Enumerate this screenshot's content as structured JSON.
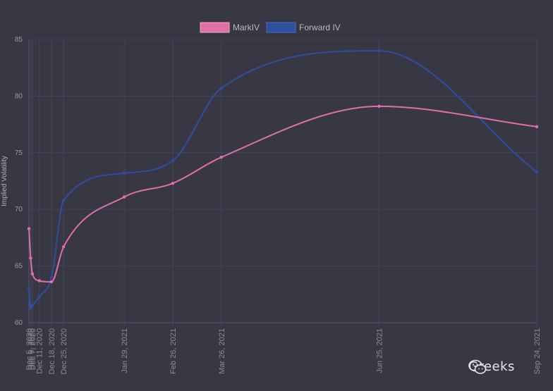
{
  "chart_data": {
    "type": "line",
    "ylabel": "Implied Volatility",
    "ylim": [
      60,
      85
    ],
    "yticks": [
      60,
      65,
      70,
      75,
      80,
      85
    ],
    "grid": true,
    "legend_position": "top-center",
    "x_labels": [
      "Dec 5, 2020",
      "Dec 6, 2020",
      "Dec 7, 2020",
      "Dec 11, 2020",
      "Dec 18, 2020",
      "Dec 25, 2020",
      "Jan 29, 2021",
      "Feb 26, 2021",
      "Mar 26, 2021",
      "Jun 25, 2021",
      "Sep 24, 2021"
    ],
    "x_days": [
      0,
      1,
      2,
      6,
      13,
      20,
      55,
      83,
      111,
      202,
      293
    ],
    "series": [
      {
        "name": "MarkIV",
        "color": "#e06fa6",
        "values": [
          68.3,
          65.7,
          64.3,
          63.7,
          63.6,
          66.7,
          71.1,
          72.3,
          74.6,
          79.1,
          77.3
        ]
      },
      {
        "name": "Forward IV",
        "color": "#2e4e9e",
        "values": [
          63.0,
          61.3,
          61.5,
          62.3,
          64.0,
          70.8,
          73.2,
          74.3,
          80.7,
          84.0,
          73.3
        ]
      }
    ]
  },
  "watermark": {
    "text": "Greeks"
  }
}
